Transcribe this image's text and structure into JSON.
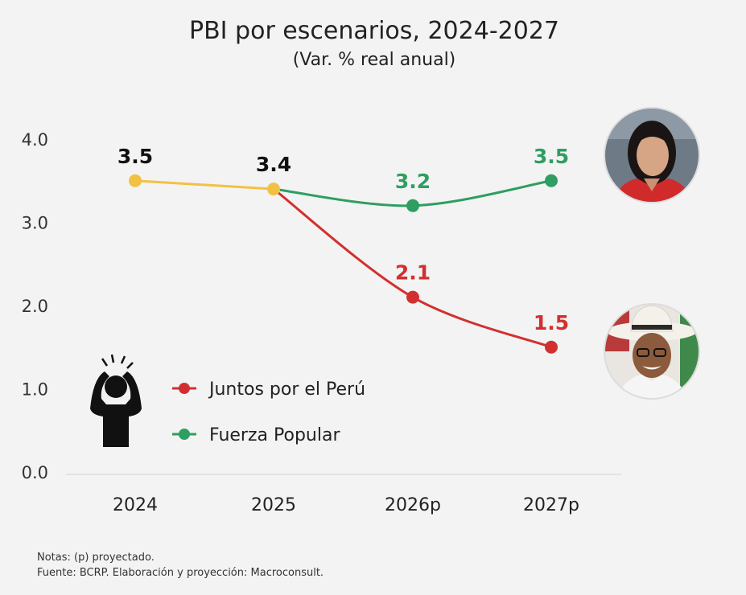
{
  "chart_data": {
    "type": "line",
    "title": "PBI por escenarios, 2024-2027",
    "subtitle": "(Var. % real anual)",
    "categories": [
      "2024",
      "2025",
      "2026p",
      "2027p"
    ],
    "yticks": [
      "0.0",
      "1.0",
      "2.0",
      "3.0",
      "4.0"
    ],
    "ylim": [
      0,
      4
    ],
    "grid": false,
    "legend_position": "bottom-left",
    "historical": {
      "color": "#f2c144",
      "values": [
        3.5,
        3.4
      ],
      "labels": [
        "3.5",
        "3.4"
      ]
    },
    "series": [
      {
        "name": "Juntos por el Perú",
        "color": "#d23030",
        "values": [
          null,
          3.4,
          2.1,
          1.5
        ],
        "labels": [
          "2.1",
          "1.5"
        ]
      },
      {
        "name": "Fuerza Popular",
        "color": "#2e9e62",
        "values": [
          null,
          3.4,
          3.2,
          3.5
        ],
        "labels": [
          "3.2",
          "3.5"
        ]
      }
    ]
  },
  "notes": {
    "line1": "Notas: (p) proyectado.",
    "line2": "Fuente: BCRP. Elaboración y proyección: Macroconsult."
  },
  "icons": [
    "worried-person-icon",
    "candidate-photo-fuerza-popular",
    "candidate-photo-juntos-por-el-peru"
  ]
}
